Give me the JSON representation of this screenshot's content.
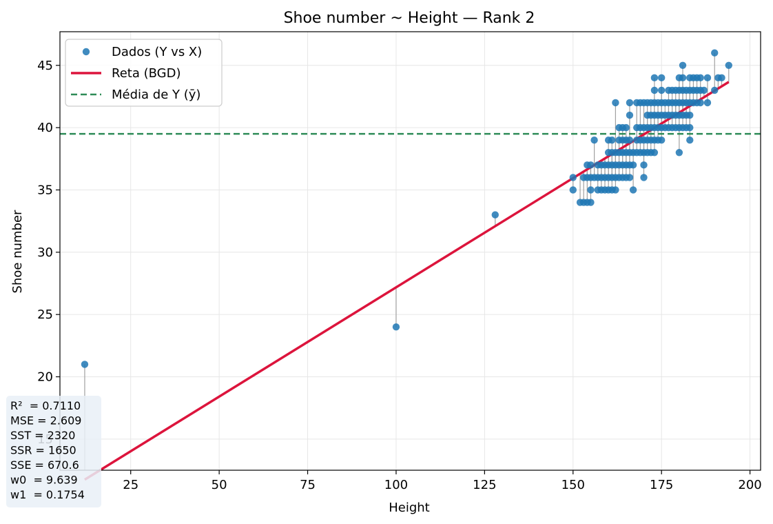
{
  "chart_data": {
    "type": "scatter",
    "title": "Shoe number ~ Height — Rank 2",
    "xlabel": "Height",
    "ylabel": "Shoe number",
    "xlim": [
      5,
      203
    ],
    "ylim": [
      12.5,
      47.7
    ],
    "xticks": [
      25,
      50,
      75,
      100,
      125,
      150,
      175,
      200
    ],
    "yticks": [
      15,
      20,
      25,
      30,
      35,
      40,
      45
    ],
    "grid": true,
    "legend_position": "top-left",
    "legend": [
      {
        "label": "Dados (Y vs X)",
        "kind": "marker",
        "color": "#1f77b4"
      },
      {
        "label": "Reta (BGD)",
        "kind": "line",
        "color": "#dc143c"
      },
      {
        "label": "Média de Y (ȳ)",
        "kind": "dashed",
        "color": "#2e8b57"
      }
    ],
    "mean_y": 39.5,
    "regression": {
      "w0": 9.639,
      "w1": 0.1754,
      "x_range": [
        12,
        194
      ]
    },
    "points": [
      [
        12,
        21
      ],
      [
        100,
        24
      ],
      [
        128,
        33
      ],
      [
        150,
        35
      ],
      [
        150,
        36
      ],
      [
        152,
        34
      ],
      [
        153,
        34
      ],
      [
        153,
        36
      ],
      [
        154,
        37
      ],
      [
        154,
        34
      ],
      [
        154,
        36
      ],
      [
        155,
        34
      ],
      [
        155,
        35
      ],
      [
        155,
        36
      ],
      [
        155,
        37
      ],
      [
        156,
        36
      ],
      [
        156,
        39
      ],
      [
        157,
        35
      ],
      [
        157,
        36
      ],
      [
        157,
        37
      ],
      [
        158,
        35
      ],
      [
        158,
        36
      ],
      [
        158,
        37
      ],
      [
        159,
        35
      ],
      [
        159,
        36
      ],
      [
        159,
        37
      ],
      [
        160,
        35
      ],
      [
        160,
        36
      ],
      [
        160,
        37
      ],
      [
        160,
        38
      ],
      [
        160,
        39
      ],
      [
        161,
        35
      ],
      [
        161,
        36
      ],
      [
        161,
        37
      ],
      [
        161,
        38
      ],
      [
        161,
        39
      ],
      [
        162,
        35
      ],
      [
        162,
        36
      ],
      [
        162,
        37
      ],
      [
        162,
        38
      ],
      [
        162,
        42
      ],
      [
        163,
        36
      ],
      [
        163,
        37
      ],
      [
        163,
        38
      ],
      [
        163,
        39
      ],
      [
        163,
        40
      ],
      [
        164,
        36
      ],
      [
        164,
        37
      ],
      [
        164,
        38
      ],
      [
        164,
        39
      ],
      [
        164,
        40
      ],
      [
        165,
        36
      ],
      [
        165,
        37
      ],
      [
        165,
        38
      ],
      [
        165,
        39
      ],
      [
        165,
        40
      ],
      [
        166,
        36
      ],
      [
        166,
        37
      ],
      [
        166,
        38
      ],
      [
        166,
        39
      ],
      [
        166,
        41
      ],
      [
        166,
        42
      ],
      [
        167,
        35
      ],
      [
        167,
        37
      ],
      [
        167,
        38
      ],
      [
        168,
        38
      ],
      [
        168,
        39
      ],
      [
        168,
        40
      ],
      [
        168,
        42
      ],
      [
        169,
        38
      ],
      [
        169,
        39
      ],
      [
        169,
        40
      ],
      [
        169,
        42
      ],
      [
        170,
        36
      ],
      [
        170,
        37
      ],
      [
        170,
        38
      ],
      [
        170,
        39
      ],
      [
        170,
        40
      ],
      [
        170,
        42
      ],
      [
        171,
        38
      ],
      [
        171,
        39
      ],
      [
        171,
        40
      ],
      [
        171,
        41
      ],
      [
        171,
        42
      ],
      [
        172,
        38
      ],
      [
        172,
        39
      ],
      [
        172,
        40
      ],
      [
        172,
        41
      ],
      [
        172,
        42
      ],
      [
        173,
        38
      ],
      [
        173,
        39
      ],
      [
        173,
        40
      ],
      [
        173,
        41
      ],
      [
        173,
        42
      ],
      [
        173,
        43
      ],
      [
        173,
        44
      ],
      [
        174,
        39
      ],
      [
        174,
        40
      ],
      [
        174,
        41
      ],
      [
        174,
        42
      ],
      [
        175,
        39
      ],
      [
        175,
        40
      ],
      [
        175,
        41
      ],
      [
        175,
        42
      ],
      [
        175,
        43
      ],
      [
        175,
        44
      ],
      [
        176,
        40
      ],
      [
        176,
        41
      ],
      [
        176,
        42
      ],
      [
        177,
        40
      ],
      [
        177,
        41
      ],
      [
        177,
        42
      ],
      [
        177,
        43
      ],
      [
        178,
        40
      ],
      [
        178,
        41
      ],
      [
        178,
        42
      ],
      [
        178,
        43
      ],
      [
        179,
        40
      ],
      [
        179,
        41
      ],
      [
        179,
        42
      ],
      [
        179,
        43
      ],
      [
        180,
        38
      ],
      [
        180,
        40
      ],
      [
        180,
        41
      ],
      [
        180,
        42
      ],
      [
        180,
        43
      ],
      [
        180,
        44
      ],
      [
        181,
        40
      ],
      [
        181,
        41
      ],
      [
        181,
        42
      ],
      [
        181,
        43
      ],
      [
        181,
        44
      ],
      [
        181,
        45
      ],
      [
        182,
        40
      ],
      [
        182,
        41
      ],
      [
        182,
        42
      ],
      [
        182,
        43
      ],
      [
        183,
        39
      ],
      [
        183,
        40
      ],
      [
        183,
        41
      ],
      [
        183,
        42
      ],
      [
        183,
        43
      ],
      [
        183,
        44
      ],
      [
        184,
        42
      ],
      [
        184,
        43
      ],
      [
        184,
        44
      ],
      [
        185,
        42
      ],
      [
        185,
        43
      ],
      [
        185,
        44
      ],
      [
        186,
        42
      ],
      [
        186,
        43
      ],
      [
        186,
        44
      ],
      [
        187,
        43
      ],
      [
        188,
        42
      ],
      [
        188,
        44
      ],
      [
        190,
        43
      ],
      [
        190,
        46
      ],
      [
        191,
        44
      ],
      [
        192,
        44
      ],
      [
        194,
        45
      ]
    ],
    "stats": [
      "R²  = 0.7110",
      "MSE = 2.609",
      "SST = 2320",
      "SSR = 1650",
      "SSE = 670.6",
      "w0  = 9.639",
      "w1  = 0.1754"
    ],
    "colors": {
      "points": "#1f77b4",
      "line": "#dc143c",
      "mean": "#2e8b57",
      "residual": "#a0a0a0",
      "grid": "#e6e6e6",
      "stats_bg": "#e9f0f7"
    }
  }
}
